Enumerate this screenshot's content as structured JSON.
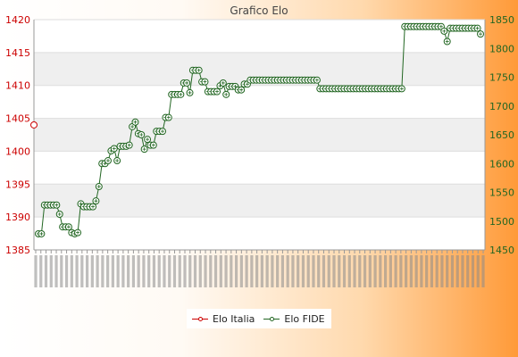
{
  "chart_data": {
    "type": "line",
    "title": "Grafico Elo",
    "xlabel": "",
    "ylabel": "",
    "y_left": {
      "min": 1385,
      "max": 1420,
      "ticks": [
        1385,
        1390,
        1395,
        1400,
        1405,
        1410,
        1415,
        1420
      ],
      "color": "#cc0000"
    },
    "y_right": {
      "min": 1450,
      "max": 1850,
      "ticks": [
        1450,
        1500,
        1550,
        1600,
        1650,
        1700,
        1750,
        1800,
        1850
      ],
      "color": "#226622"
    },
    "x_tick_labels_legible": false,
    "series": [
      {
        "name": "Elo Italia",
        "axis": "left",
        "color": "#cc0000",
        "points": [
          {
            "x": 0,
            "y": 1404
          }
        ]
      },
      {
        "name": "Elo FIDE",
        "axis": "right",
        "color": "#226622",
        "values": [
          1478,
          1478,
          1528,
          1528,
          1528,
          1528,
          1528,
          1512,
          1490,
          1490,
          1490,
          1480,
          1478,
          1480,
          1530,
          1525,
          1525,
          1525,
          1525,
          1535,
          1560,
          1600,
          1600,
          1605,
          1622,
          1626,
          1605,
          1630,
          1630,
          1630,
          1632,
          1664,
          1672,
          1652,
          1650,
          1625,
          1642,
          1632,
          1632,
          1656,
          1656,
          1656,
          1680,
          1680,
          1720,
          1720,
          1720,
          1720,
          1740,
          1740,
          1723,
          1762,
          1762,
          1762,
          1742,
          1742,
          1725,
          1725,
          1725,
          1725,
          1735,
          1740,
          1720,
          1734,
          1734,
          1734,
          1728,
          1728,
          1738,
          1738,
          1745,
          1745,
          1745,
          1745,
          1745,
          1745,
          1745,
          1745,
          1745,
          1745,
          1745,
          1745,
          1745,
          1745,
          1745,
          1745,
          1745,
          1745,
          1745,
          1745,
          1745,
          1745,
          1745,
          1730,
          1730,
          1730,
          1730,
          1730,
          1730,
          1730,
          1730,
          1730,
          1730,
          1730,
          1730,
          1730,
          1730,
          1730,
          1730,
          1730,
          1730,
          1730,
          1730,
          1730,
          1730,
          1730,
          1730,
          1730,
          1730,
          1730,
          1730,
          1838,
          1838,
          1838,
          1838,
          1838,
          1838,
          1838,
          1838,
          1838,
          1838,
          1838,
          1838,
          1838,
          1830,
          1812,
          1835,
          1835,
          1835,
          1835,
          1835,
          1835,
          1835,
          1835,
          1835,
          1835,
          1825
        ]
      }
    ],
    "grid": true,
    "legend": {
      "position": "bottom-center"
    }
  }
}
